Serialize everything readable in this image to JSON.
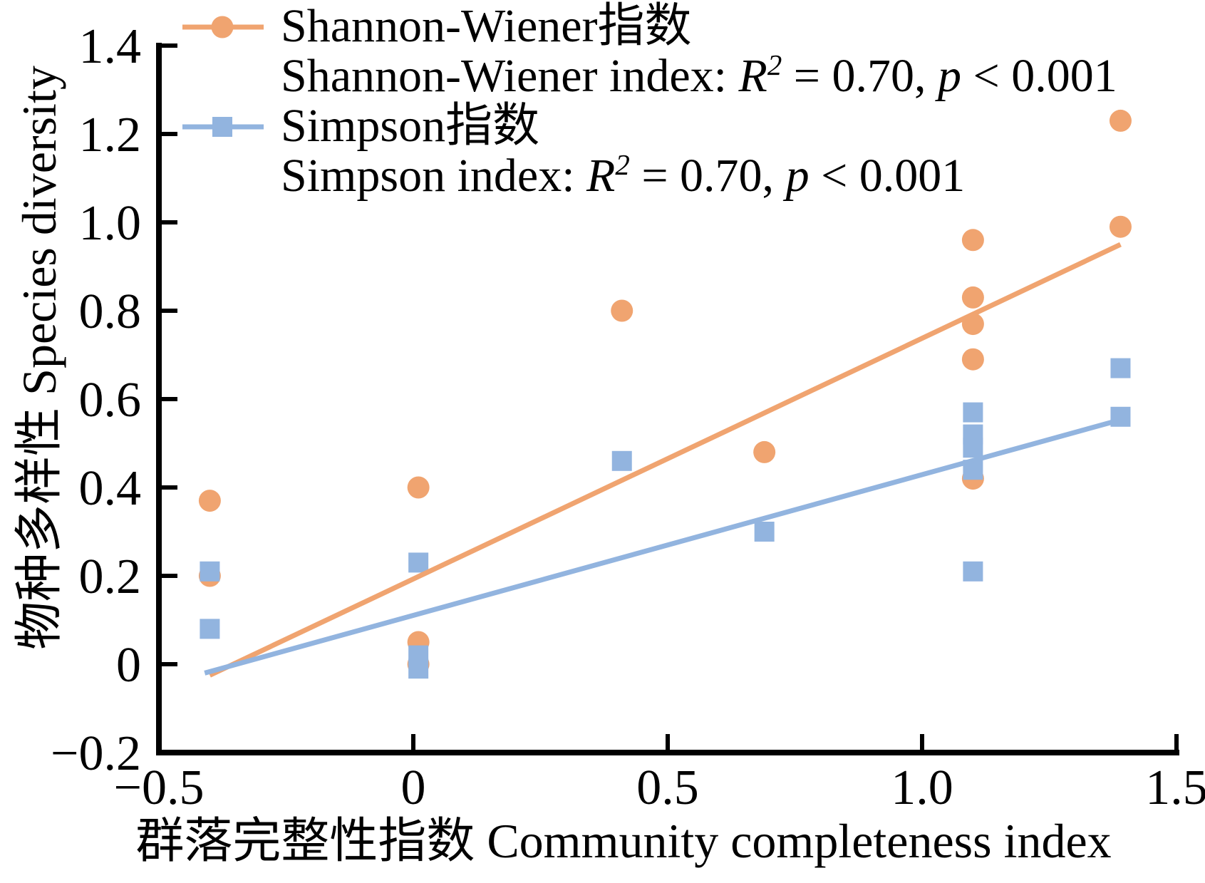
{
  "figure": {
    "background": "#FFFFFF",
    "axis_color": "#000000"
  },
  "legend": {
    "position": "top-left",
    "items": [
      {
        "title": "Shannon-Wiener指数",
        "stat_prefix": "Shannon-Wiener index: ",
        "r_symbol": "R",
        "r_sup": "2",
        "mid": " = 0.70, ",
        "p_symbol": "p",
        "tail": " < 0.001",
        "marker": "circle",
        "color": "#F0A470"
      },
      {
        "title": "Simpson指数",
        "stat_prefix": "Simpson index: ",
        "r_symbol": "R",
        "r_sup": "2",
        "mid": " = 0.70, ",
        "p_symbol": "p",
        "tail": " < 0.001",
        "marker": "square",
        "color": "#92B4DF"
      }
    ]
  },
  "chart_data": {
    "type": "scatter",
    "title": "",
    "xlabel": "群落完整性指数 Community completeness index",
    "ylabel": "物种多样性 Species diversity",
    "xlim": [
      -0.5,
      1.5
    ],
    "ylim": [
      -0.2,
      1.4
    ],
    "grid": false,
    "legend_position": "top-left",
    "x_ticks": {
      "values": [
        -0.5,
        0,
        0.5,
        1.0,
        1.5
      ],
      "labels": [
        "−0.5",
        "0",
        "0.5",
        "1.0",
        "1.5"
      ]
    },
    "y_ticks": {
      "values": [
        -0.2,
        0,
        0.2,
        0.4,
        0.6,
        0.8,
        1.0,
        1.2,
        1.4
      ],
      "labels": [
        "−0.2",
        "0",
        "0.2",
        "0.4",
        "0.6",
        "0.8",
        "1.0",
        "1.2",
        "1.4"
      ]
    },
    "series": [
      {
        "name": "Shannon-Wiener index",
        "name_cn": "Shannon-Wiener指数",
        "marker": "circle",
        "color": "#F0A470",
        "r2": "0.70",
        "p": "< 0.001",
        "points": [
          [
            -0.4,
            0.37
          ],
          [
            -0.4,
            0.2
          ],
          [
            0.01,
            0.4
          ],
          [
            0.01,
            0.05
          ],
          [
            0.01,
            0.0
          ],
          [
            0.41,
            0.8
          ],
          [
            0.69,
            0.48
          ],
          [
            1.1,
            0.96
          ],
          [
            1.1,
            0.83
          ],
          [
            1.1,
            0.77
          ],
          [
            1.1,
            0.69
          ],
          [
            1.1,
            0.42
          ],
          [
            1.39,
            1.23
          ],
          [
            1.39,
            0.99
          ]
        ],
        "trendline": [
          [
            -0.4,
            -0.025
          ],
          [
            1.39,
            0.95
          ]
        ]
      },
      {
        "name": "Simpson index",
        "name_cn": "Simpson指数",
        "marker": "square",
        "color": "#92B4DF",
        "r2": "0.70",
        "p": "< 0.001",
        "points": [
          [
            -0.4,
            0.21
          ],
          [
            -0.4,
            0.08
          ],
          [
            0.01,
            0.23
          ],
          [
            0.01,
            0.02
          ],
          [
            0.01,
            -0.01
          ],
          [
            0.41,
            0.46
          ],
          [
            0.69,
            0.3
          ],
          [
            1.1,
            0.57
          ],
          [
            1.1,
            0.52
          ],
          [
            1.1,
            0.49
          ],
          [
            1.1,
            0.44
          ],
          [
            1.1,
            0.21
          ],
          [
            1.39,
            0.67
          ],
          [
            1.39,
            0.56
          ]
        ],
        "trendline": [
          [
            -0.41,
            -0.02
          ],
          [
            1.38,
            0.55
          ]
        ]
      }
    ]
  }
}
